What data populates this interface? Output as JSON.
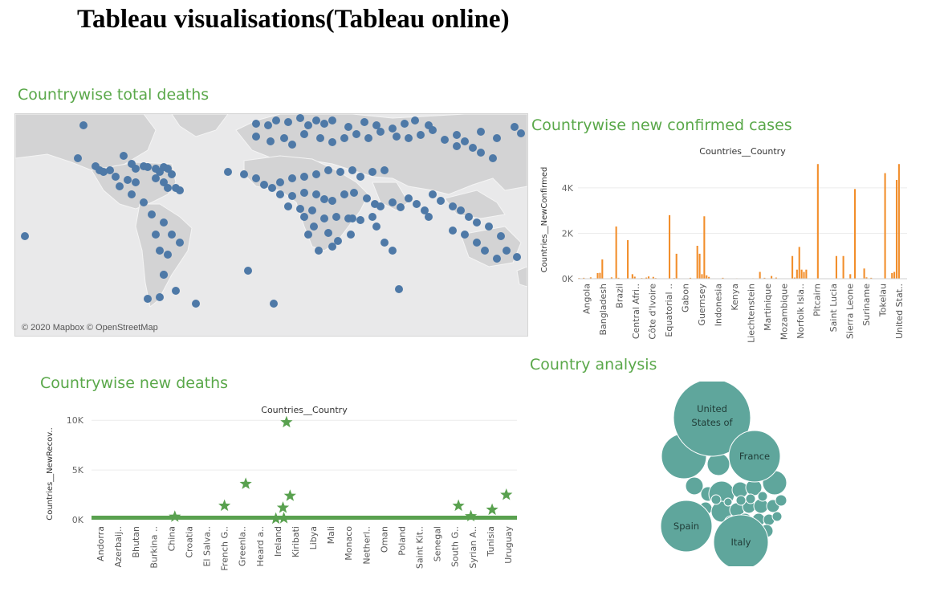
{
  "page": {
    "title": "Tableau visualisations(Tableau online)"
  },
  "map": {
    "title": "Countrywise total deaths",
    "credit": "© 2020 Mapbox © OpenStreetMap",
    "marker_color": "#4e79a7"
  },
  "chart_data": [
    {
      "type": "bar",
      "title": "Countries__Country",
      "section_title": "Countrywise new confirmed cases",
      "ylabel": "Countries__NewConfirmed",
      "ylim": [
        0,
        5200
      ],
      "yticks": [
        0,
        2000,
        4000
      ],
      "ytick_labels": [
        "0K",
        "2K",
        "4K"
      ],
      "color": "#f28e2b",
      "tick_categories": [
        "Angola",
        "Bangladesh",
        "Brazil",
        "Central Afri..",
        "Côte d'Ivoire",
        "Equatorial ..",
        "Gabon",
        "Guernsey",
        "Indonesia",
        "Kenya",
        "Liechtenstein",
        "Martinique",
        "Mozambique",
        "Norfolk Isla..",
        "Pitcairn",
        "Saint Lucia",
        "Sierra Leone",
        "Suriname",
        "Tokelau",
        "United Stat.."
      ],
      "values": [
        30,
        0,
        40,
        0,
        0,
        60,
        0,
        20,
        250,
        260,
        850,
        0,
        0,
        0,
        60,
        0,
        2300,
        40,
        0,
        0,
        0,
        1700,
        0,
        200,
        90,
        0,
        0,
        30,
        20,
        50,
        100,
        0,
        80,
        30,
        0,
        0,
        0,
        0,
        0,
        2800,
        0,
        30,
        1100,
        20,
        0,
        0,
        0,
        0,
        40,
        0,
        0,
        1450,
        1100,
        200,
        2750,
        150,
        80,
        0,
        0,
        0,
        0,
        0,
        40,
        0,
        0,
        0,
        0,
        0,
        20,
        0,
        0,
        0,
        0,
        0,
        0,
        20,
        0,
        0,
        300,
        0,
        40,
        0,
        0,
        120,
        0,
        50,
        0,
        0,
        0,
        0,
        0,
        0,
        1000,
        50,
        400,
        1400,
        400,
        300,
        400,
        0,
        0,
        0,
        0,
        5050,
        0,
        0,
        0,
        0,
        0,
        0,
        0,
        1000,
        0,
        0,
        1000,
        0,
        0,
        200,
        0,
        3950,
        0,
        0,
        0,
        450,
        60,
        0,
        40,
        0,
        0,
        0,
        0,
        0,
        4650,
        0,
        0,
        250,
        300,
        4350,
        5050,
        0,
        0,
        0
      ]
    },
    {
      "type": "scatter",
      "title": "Countries__Country",
      "section_title": "Countrywise new deaths",
      "ylabel": "Countries__NewRecov..",
      "ylim": [
        0,
        10500
      ],
      "yticks": [
        0,
        5000,
        10000
      ],
      "ytick_labels": [
        "0K",
        "5K",
        "10K"
      ],
      "color": "#59a14f",
      "tick_categories": [
        "Andorra",
        "Azerbaij..",
        "Bhutan",
        "Burkina ..",
        "China",
        "Croatia",
        "El Salva..",
        "French G..",
        "Greenla..",
        "Heard a..",
        "Ireland",
        "Kiribati",
        "Libya",
        "Mali",
        "Monaco",
        "Netherl..",
        "Oman",
        "Poland",
        "Saint Kit..",
        "Senegal",
        "South G..",
        "Syrian A..",
        "Tunisia",
        "Uruguay"
      ],
      "stars_x": [
        4.2,
        7.0,
        8.2,
        9.9,
        10.3,
        10.35,
        10.5,
        10.7,
        20.2,
        20.9,
        22.1,
        22.9
      ],
      "stars_y": [
        300,
        1400,
        3600,
        100,
        1200,
        150,
        9800,
        2400,
        1400,
        350,
        1000,
        2500
      ],
      "baseline_y": 0
    },
    {
      "type": "bubble",
      "section_title": "Country analysis",
      "color": "#5fa69c",
      "labels": [
        "United States of",
        "France",
        "Spain",
        "Italy"
      ],
      "values": [
        100,
        55,
        58,
        65
      ]
    }
  ]
}
